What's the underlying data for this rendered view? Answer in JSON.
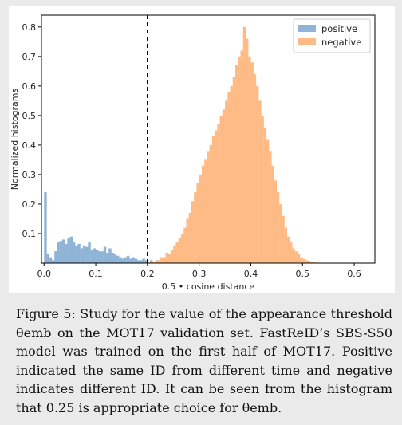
{
  "chart_data": {
    "type": "histogram",
    "xlabel": "0.5 • cosine distance",
    "ylabel": "Normalized histograms",
    "xlim": [
      -0.005,
      0.64
    ],
    "ylim": [
      0,
      0.84
    ],
    "xticks": [
      "0.0",
      "0.1",
      "0.2",
      "0.3",
      "0.4",
      "0.5",
      "0.6"
    ],
    "yticks": [
      "0.1",
      "0.2",
      "0.3",
      "0.4",
      "0.5",
      "0.6",
      "0.7",
      "0.8"
    ],
    "bin_width": 0.005,
    "threshold_line": {
      "x": 0.2,
      "style": "dashed",
      "color": "#000000"
    },
    "legend": {
      "position": "top-right"
    },
    "series": [
      {
        "name": "positive",
        "color": "#8fb4d6",
        "bin_start": 0.0,
        "values": [
          0.24,
          0.03,
          0.02,
          0.01,
          0.04,
          0.07,
          0.075,
          0.08,
          0.065,
          0.085,
          0.09,
          0.07,
          0.06,
          0.065,
          0.05,
          0.06,
          0.055,
          0.07,
          0.045,
          0.05,
          0.045,
          0.04,
          0.04,
          0.055,
          0.035,
          0.05,
          0.035,
          0.03,
          0.025,
          0.02,
          0.015,
          0.02,
          0.025,
          0.015,
          0.02,
          0.015,
          0.01,
          0.01,
          0.015,
          0.01,
          0.005,
          0.01,
          0.005,
          0.005,
          0.005,
          0.005
        ]
      },
      {
        "name": "negative",
        "color": "#ffbb85",
        "bin_start": 0.2,
        "values": [
          0.005,
          0.003,
          0.005,
          0.01,
          0.01,
          0.02,
          0.02,
          0.035,
          0.03,
          0.045,
          0.06,
          0.07,
          0.085,
          0.1,
          0.12,
          0.15,
          0.17,
          0.21,
          0.24,
          0.27,
          0.3,
          0.33,
          0.35,
          0.38,
          0.4,
          0.43,
          0.45,
          0.47,
          0.5,
          0.52,
          0.55,
          0.58,
          0.6,
          0.63,
          0.67,
          0.7,
          0.72,
          0.8,
          0.76,
          0.7,
          0.68,
          0.64,
          0.6,
          0.55,
          0.5,
          0.46,
          0.42,
          0.38,
          0.33,
          0.28,
          0.24,
          0.2,
          0.16,
          0.12,
          0.09,
          0.07,
          0.05,
          0.04,
          0.03,
          0.02,
          0.015,
          0.01,
          0.008,
          0.005,
          0.003,
          0.002
        ]
      }
    ]
  },
  "caption": {
    "text": "Figure 5: Study for the value of the appearance threshold θemb on the MOT17 validation set. FastReID’s SBS-S50 model was trained on the first half of MOT17. Positive indicated the same ID from different time and negative indicates different ID. It can be seen from the histogram that 0.25 is appropriate choice for θemb."
  }
}
